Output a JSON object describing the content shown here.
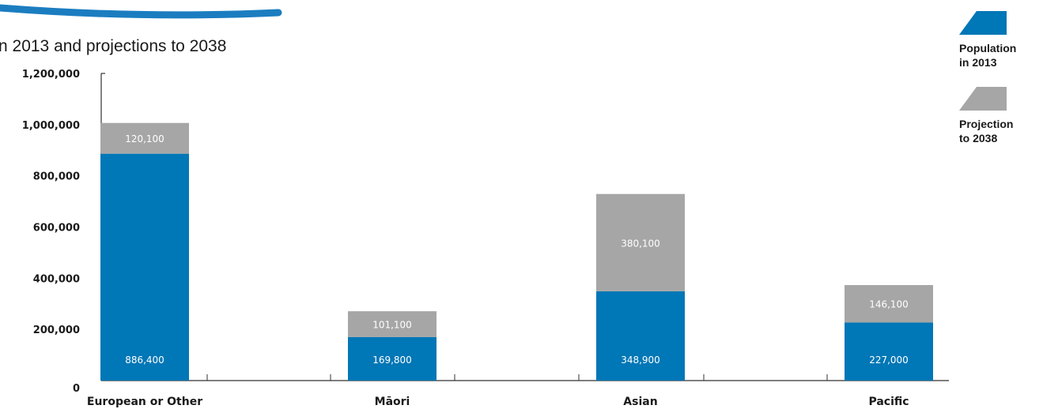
{
  "subtitle": "n 2013 and projections to 2038",
  "colors": {
    "population_2013": "#0077b6",
    "projection_2038": "#a6a6a6",
    "title_stroke": "#1b7dc0",
    "axis": "#333333"
  },
  "legend": {
    "items": [
      {
        "label": "Population\nin 2013",
        "color": "#0077b6"
      },
      {
        "label": "Projection\nto 2038",
        "color": "#a6a6a6"
      }
    ]
  },
  "chart_data": {
    "type": "bar",
    "stacked": true,
    "title": "",
    "subtitle": "n 2013 and projections to 2038",
    "xlabel": "",
    "ylabel": "",
    "categories": [
      "European or Other",
      "Māori",
      "Asian",
      "Pacific"
    ],
    "series": [
      {
        "name": "Population in 2013",
        "color": "#0077b6",
        "values": [
          886400,
          169800,
          348900,
          227000
        ],
        "labels": [
          "886,400",
          "169,800",
          "348,900",
          "227,000"
        ]
      },
      {
        "name": "Projection to 2038",
        "color": "#a6a6a6",
        "values": [
          120100,
          101100,
          380100,
          146100
        ],
        "labels": [
          "120,100",
          "101,100",
          "380,100",
          "146,100"
        ]
      }
    ],
    "ylim": [
      0,
      1200000
    ],
    "yticks": [
      0,
      200000,
      400000,
      600000,
      800000,
      1000000,
      1200000
    ],
    "ytick_labels": [
      "0",
      "200,000",
      "400,000",
      "600,000",
      "800,000",
      "1,000,000",
      "1,200,000"
    ],
    "grid": false,
    "legend_position": "top-right"
  }
}
